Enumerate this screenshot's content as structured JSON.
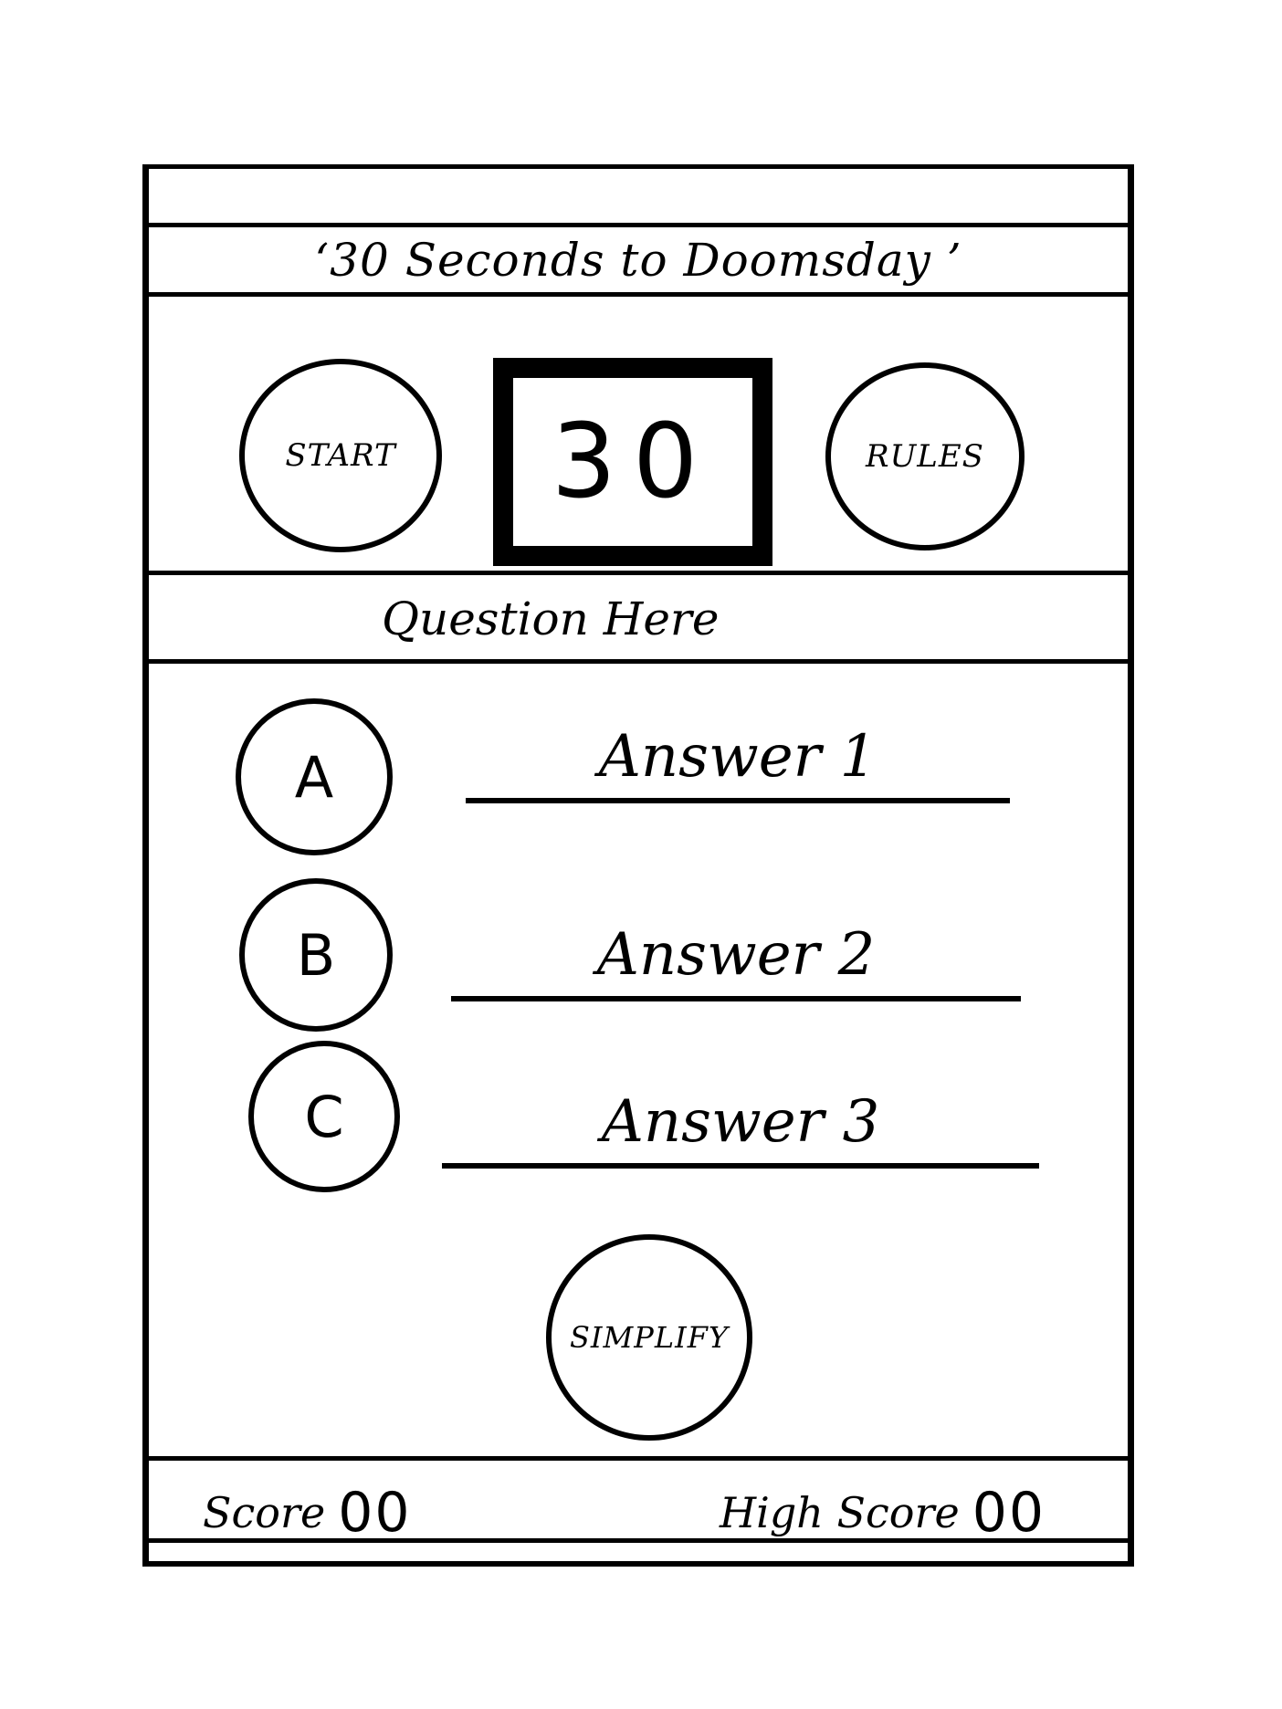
{
  "header": {
    "title": "‘30 Seconds to Doomsday ’"
  },
  "controls": {
    "start_label": "START",
    "rules_label": "RULES",
    "timer_value": "30"
  },
  "question": {
    "text": "Question Here"
  },
  "options": [
    {
      "letter": "A",
      "answer": "Answer 1"
    },
    {
      "letter": "B",
      "answer": "Answer 2"
    },
    {
      "letter": "C",
      "answer": "Answer 3"
    }
  ],
  "simplify": {
    "label": "SIMPLIFY"
  },
  "footer": {
    "score_label": "Score",
    "score_value": "00",
    "high_score_label": "High Score",
    "high_score_value": "00"
  }
}
